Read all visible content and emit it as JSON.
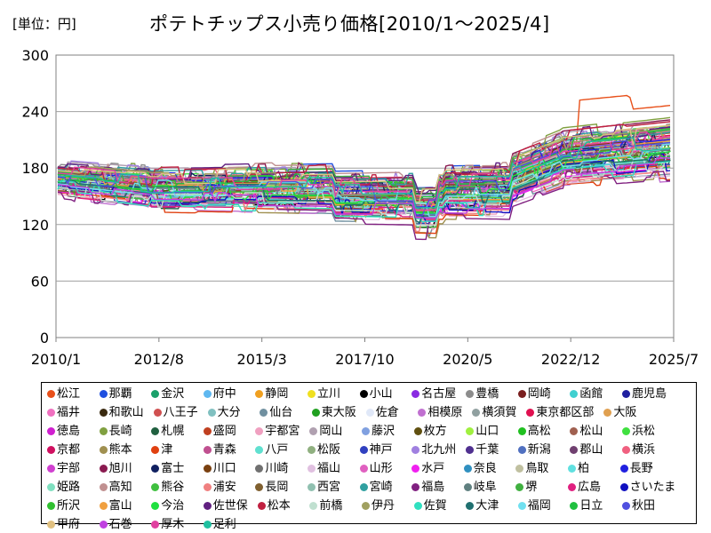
{
  "unit_label": "[単位：円]",
  "chart_data": {
    "type": "line",
    "title": "ポテトチップス小売り価格[2010/1～2025/4]",
    "xlabel": "",
    "ylabel": "",
    "x_ticks": [
      "2010/1",
      "2012/8",
      "2015/3",
      "2017/10",
      "2020/5",
      "2022/12",
      "2025/7"
    ],
    "y_ticks": [
      0,
      60,
      120,
      180,
      240,
      300
    ],
    "ylim": [
      0,
      300
    ],
    "grid": "horizontal",
    "legend_position": "bottom",
    "series": [
      {
        "name": "松江",
        "color": "#e8501a"
      },
      {
        "name": "那覇",
        "color": "#1f4fe0"
      },
      {
        "name": "金沢",
        "color": "#1aa06a"
      },
      {
        "name": "府中",
        "color": "#5fb8f0"
      },
      {
        "name": "静岡",
        "color": "#f0a020"
      },
      {
        "name": "立川",
        "color": "#f0e020"
      },
      {
        "name": "小山",
        "color": "#000000"
      },
      {
        "name": "名古屋",
        "color": "#8a2be2"
      },
      {
        "name": "豊橋",
        "color": "#8c8c8c"
      },
      {
        "name": "岡崎",
        "color": "#7a1f1f"
      },
      {
        "name": "函館",
        "color": "#40d0d0"
      },
      {
        "name": "鹿児島",
        "color": "#2020a0"
      },
      {
        "name": "福井",
        "color": "#f070c0"
      },
      {
        "name": "和歌山",
        "color": "#3a2a10"
      },
      {
        "name": "八王子",
        "color": "#d05050"
      },
      {
        "name": "大分",
        "color": "#80c0c0"
      },
      {
        "name": "仙台",
        "color": "#7090a0"
      },
      {
        "name": "東大阪",
        "color": "#20a020"
      },
      {
        "name": "佐倉",
        "color": "#e0e8f8"
      },
      {
        "name": "相模原",
        "color": "#c070d0"
      },
      {
        "name": "横須賀",
        "color": "#90a0a0"
      },
      {
        "name": "東京都区部",
        "color": "#e01050"
      },
      {
        "name": "大阪",
        "color": "#e0a050"
      },
      {
        "name": "徳島",
        "color": "#d020d0"
      },
      {
        "name": "長崎",
        "color": "#80a040"
      },
      {
        "name": "札幌",
        "color": "#206040"
      },
      {
        "name": "盛岡",
        "color": "#c04020"
      },
      {
        "name": "宇都宮",
        "color": "#f0a0c0"
      },
      {
        "name": "岡山",
        "color": "#b0a0b0"
      },
      {
        "name": "藤沢",
        "color": "#80a0e0"
      },
      {
        "name": "枚方",
        "color": "#605010"
      },
      {
        "name": "山口",
        "color": "#a0f040"
      },
      {
        "name": "高松",
        "color": "#20c020"
      },
      {
        "name": "松山",
        "color": "#a06050"
      },
      {
        "name": "浜松",
        "color": "#40e040"
      },
      {
        "name": "京都",
        "color": "#d01060"
      },
      {
        "name": "熊本",
        "color": "#a09050"
      },
      {
        "name": "津",
        "color": "#e04010"
      },
      {
        "name": "青森",
        "color": "#c05090"
      },
      {
        "name": "八戸",
        "color": "#60e0d0"
      },
      {
        "name": "松阪",
        "color": "#90b080"
      },
      {
        "name": "神戸",
        "color": "#3040c0"
      },
      {
        "name": "北九州",
        "color": "#a080e0"
      },
      {
        "name": "千葉",
        "color": "#503090"
      },
      {
        "name": "新潟",
        "color": "#5070c0"
      },
      {
        "name": "郡山",
        "color": "#704070"
      },
      {
        "name": "横浜",
        "color": "#f06080"
      },
      {
        "name": "宇部",
        "color": "#d040d0"
      },
      {
        "name": "旭川",
        "color": "#8a1a50"
      },
      {
        "name": "富士",
        "color": "#102060"
      },
      {
        "name": "川口",
        "color": "#7a4010"
      },
      {
        "name": "川崎",
        "color": "#707070"
      },
      {
        "name": "福山",
        "color": "#e0c0e0"
      },
      {
        "name": "山形",
        "color": "#e060c0"
      },
      {
        "name": "水戸",
        "color": "#f020f0"
      },
      {
        "name": "奈良",
        "color": "#3090c0"
      },
      {
        "name": "鳥取",
        "color": "#c0c0a0"
      },
      {
        "name": "柏",
        "color": "#60e0e0"
      },
      {
        "name": "長野",
        "color": "#2020e0"
      },
      {
        "name": "姫路",
        "color": "#80e0c0"
      },
      {
        "name": "高知",
        "color": "#c09090"
      },
      {
        "name": "熊谷",
        "color": "#40c040"
      },
      {
        "name": "浦安",
        "color": "#f08080"
      },
      {
        "name": "長岡",
        "color": "#806030"
      },
      {
        "name": "西宮",
        "color": "#90c0b0"
      },
      {
        "name": "宮崎",
        "color": "#30a0a0"
      },
      {
        "name": "福島",
        "color": "#802080"
      },
      {
        "name": "岐阜",
        "color": "#608080"
      },
      {
        "name": "堺",
        "color": "#40b040"
      },
      {
        "name": "広島",
        "color": "#e02080"
      },
      {
        "name": "さいたま",
        "color": "#1010c0"
      },
      {
        "name": "所沢",
        "color": "#30c030"
      },
      {
        "name": "富山",
        "color": "#f0a040"
      },
      {
        "name": "今治",
        "color": "#20e040"
      },
      {
        "name": "佐世保",
        "color": "#602080"
      },
      {
        "name": "松本",
        "color": "#c02040"
      },
      {
        "name": "前橋",
        "color": "#c0e0d0"
      },
      {
        "name": "伊丹",
        "color": "#a0a060"
      },
      {
        "name": "佐賀",
        "color": "#30e0c0"
      },
      {
        "name": "大津",
        "color": "#207070"
      },
      {
        "name": "福岡",
        "color": "#70e0f0"
      },
      {
        "name": "日立",
        "color": "#20c040"
      },
      {
        "name": "秋田",
        "color": "#5050e0"
      },
      {
        "name": "甲府",
        "color": "#e0c080"
      },
      {
        "name": "石巻",
        "color": "#c040e0"
      },
      {
        "name": "厚木",
        "color": "#e040a0"
      },
      {
        "name": "足利",
        "color": "#20c0a0"
      }
    ]
  }
}
